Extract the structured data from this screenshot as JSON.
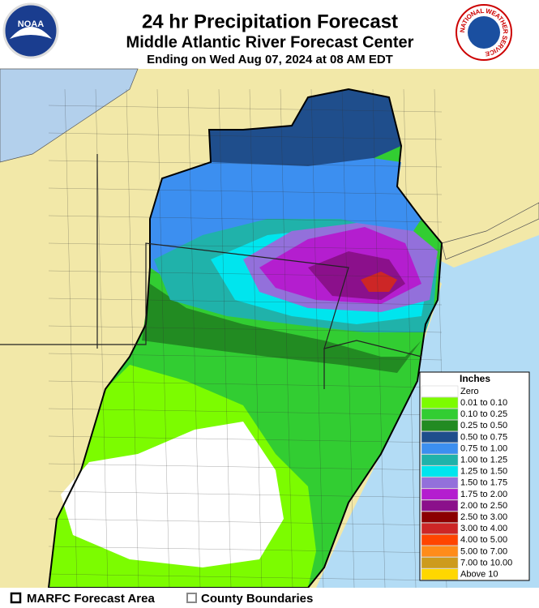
{
  "header": {
    "title": "24 hr Precipitation Forecast",
    "subtitle": "Middle Atlantic River Forecast Center",
    "valid": "Ending on Wed Aug 07, 2024 at 08 AM EDT",
    "left_logo": "NOAA",
    "right_logo": "NATIONAL WEATHER SERVICE"
  },
  "legend": {
    "title": "Inches",
    "items": [
      {
        "label": "Zero",
        "color": "#ffffff"
      },
      {
        "label": "0.01 to 0.10",
        "color": "#7cfc00"
      },
      {
        "label": "0.10 to 0.25",
        "color": "#32cd32"
      },
      {
        "label": "0.25 to 0.50",
        "color": "#228b22"
      },
      {
        "label": "0.50 to 0.75",
        "color": "#1f4e8c"
      },
      {
        "label": "0.75 to 1.00",
        "color": "#3c8ff0"
      },
      {
        "label": "1.00 to 1.25",
        "color": "#20b2aa"
      },
      {
        "label": "1.25 to 1.50",
        "color": "#00e5ee"
      },
      {
        "label": "1.50 to 1.75",
        "color": "#9370db"
      },
      {
        "label": "1.75 to 2.00",
        "color": "#b41ecf"
      },
      {
        "label": "2.00 to 2.50",
        "color": "#8b108b"
      },
      {
        "label": "2.50 to 3.00",
        "color": "#8b0000"
      },
      {
        "label": "3.00 to 4.00",
        "color": "#cd2626"
      },
      {
        "label": "4.00 to 5.00",
        "color": "#ff4500"
      },
      {
        "label": "5.00 to 7.00",
        "color": "#ff8c1a"
      },
      {
        "label": "7.00 to 10.00",
        "color": "#cd9b1d"
      },
      {
        "label": "Above 10",
        "color": "#ffd700"
      }
    ]
  },
  "footer": {
    "forecast_area": "MARFC Forecast Area",
    "county_boundaries": "County Boundaries"
  }
}
